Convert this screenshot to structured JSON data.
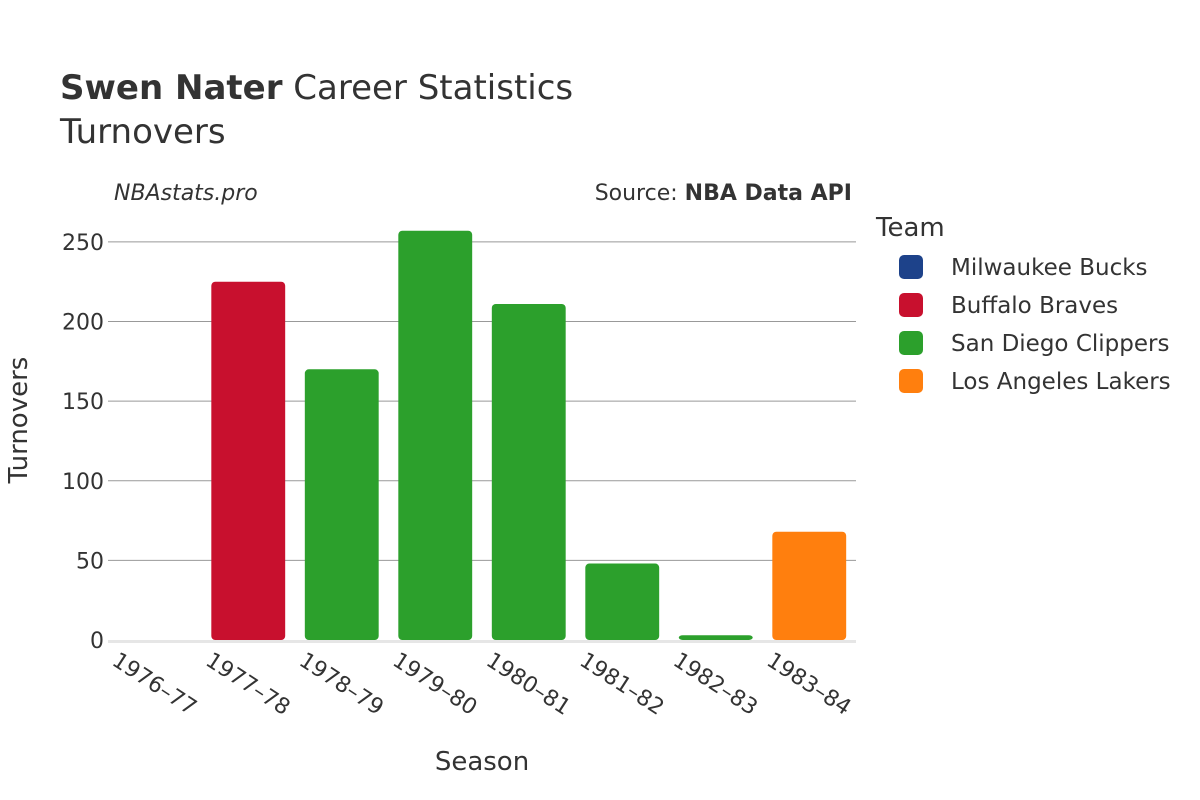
{
  "header": {
    "player_name": "Swen Nater",
    "title_rest": " Career Statistics",
    "subtitle": "Turnovers"
  },
  "credits": {
    "site": "NBAstats.pro",
    "source_prefix": "Source: ",
    "source_name": "NBA Data API"
  },
  "colors": {
    "Milwaukee Bucks": "#1d428a",
    "Buffalo Braves": "#c8102e",
    "San Diego Clippers": "#2ca02c",
    "Los Angeles Lakers": "#ff7f0e"
  },
  "chart_data": {
    "type": "bar",
    "title": "Swen Nater Career Statistics",
    "subtitle": "Turnovers",
    "xlabel": "Season",
    "ylabel": "Turnovers",
    "ylim": [
      0,
      265
    ],
    "yticks": [
      0,
      50,
      100,
      150,
      200,
      250
    ],
    "grid": true,
    "legend_title": "Team",
    "legend_position": "right",
    "categories": [
      "1976–77",
      "1977–78",
      "1978–79",
      "1979–80",
      "1980–81",
      "1981–82",
      "1982–83",
      "1983–84"
    ],
    "bars": [
      {
        "season": "1976–77",
        "team": "Milwaukee Bucks",
        "value": 0
      },
      {
        "season": "1977–78",
        "team": "Buffalo Braves",
        "value": 225
      },
      {
        "season": "1978–79",
        "team": "San Diego Clippers",
        "value": 170
      },
      {
        "season": "1979–80",
        "team": "San Diego Clippers",
        "value": 257
      },
      {
        "season": "1980–81",
        "team": "San Diego Clippers",
        "value": 211
      },
      {
        "season": "1981–82",
        "team": "San Diego Clippers",
        "value": 48
      },
      {
        "season": "1982–83",
        "team": "San Diego Clippers",
        "value": 3
      },
      {
        "season": "1983–84",
        "team": "Los Angeles Lakers",
        "value": 68
      }
    ],
    "legend": [
      "Milwaukee Bucks",
      "Buffalo Braves",
      "San Diego Clippers",
      "Los Angeles Lakers"
    ]
  }
}
